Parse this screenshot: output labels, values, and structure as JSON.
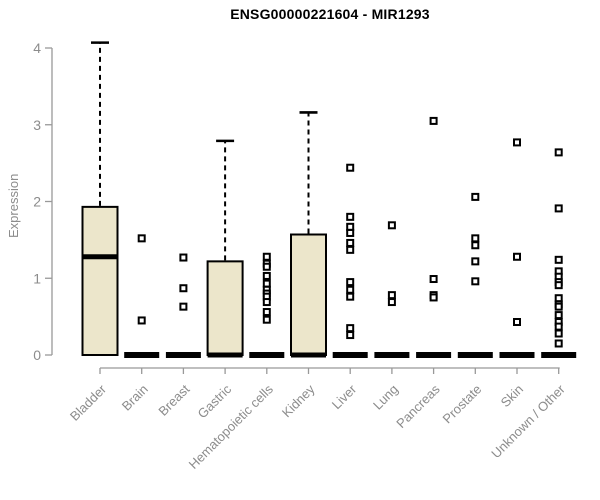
{
  "title": "ENSG00000221604 - MIR1293",
  "chart_data": {
    "type": "boxplot",
    "title": "ENSG00000221604 - MIR1293",
    "xlabel": "",
    "ylabel": "Expression",
    "ylim": [
      0,
      4
    ],
    "yticks": [
      0,
      1,
      2,
      3,
      4
    ],
    "grid": false,
    "legend": "none",
    "categories": [
      "Bladder",
      "Brain",
      "Breast",
      "Gastric",
      "Hematopoietic cells",
      "Kidney",
      "Liver",
      "Lung",
      "Pancreas",
      "Prostate",
      "Skin",
      "Unknown / Other"
    ],
    "series": [
      {
        "category": "Bladder",
        "q1": 0,
        "median": 1.28,
        "q3": 1.93,
        "whisker_low": 0,
        "whisker_high": 4.07,
        "outliers": []
      },
      {
        "category": "Brain",
        "q1": 0,
        "median": 0,
        "q3": 0,
        "whisker_low": 0,
        "whisker_high": 0,
        "outliers": [
          1.52,
          0.45
        ]
      },
      {
        "category": "Breast",
        "q1": 0,
        "median": 0,
        "q3": 0,
        "whisker_low": 0,
        "whisker_high": 0,
        "outliers": [
          1.27,
          0.87,
          0.63
        ]
      },
      {
        "category": "Gastric",
        "q1": 0,
        "median": 0,
        "q3": 1.22,
        "whisker_low": 0,
        "whisker_high": 2.79,
        "outliers": []
      },
      {
        "category": "Hematopoietic cells",
        "q1": 0,
        "median": 0,
        "q3": 0,
        "whisker_low": 0,
        "whisker_high": 0,
        "outliers": [
          1.28,
          1.19,
          1.15,
          1.03,
          0.93,
          0.85,
          0.8,
          0.76,
          0.69,
          0.56,
          0.46
        ]
      },
      {
        "category": "Kidney",
        "q1": 0,
        "median": 0,
        "q3": 1.57,
        "whisker_low": 0,
        "whisker_high": 3.16,
        "outliers": []
      },
      {
        "category": "Liver",
        "q1": 0,
        "median": 0,
        "q3": 0,
        "whisker_low": 0,
        "whisker_high": 0,
        "outliers": [
          2.44,
          1.8,
          1.67,
          1.59,
          1.46,
          1.37,
          0.95,
          0.85,
          0.76,
          0.35,
          0.26
        ]
      },
      {
        "category": "Lung",
        "q1": 0,
        "median": 0,
        "q3": 0,
        "whisker_low": 0,
        "whisker_high": 0,
        "outliers": [
          1.69,
          0.78,
          0.69
        ]
      },
      {
        "category": "Pancreas",
        "q1": 0,
        "median": 0,
        "q3": 0,
        "whisker_low": 0,
        "whisker_high": 0,
        "outliers": [
          3.05,
          0.99,
          0.78,
          0.75
        ]
      },
      {
        "category": "Prostate",
        "q1": 0,
        "median": 0,
        "q3": 0,
        "whisker_low": 0,
        "whisker_high": 0,
        "outliers": [
          2.06,
          1.52,
          1.43,
          1.22,
          0.96
        ]
      },
      {
        "category": "Skin",
        "q1": 0,
        "median": 0,
        "q3": 0,
        "whisker_low": 0,
        "whisker_high": 0,
        "outliers": [
          2.77,
          1.28,
          0.43
        ]
      },
      {
        "category": "Unknown / Other",
        "q1": 0,
        "median": 0,
        "q3": 0,
        "whisker_low": 0,
        "whisker_high": 0,
        "outliers": [
          2.64,
          1.91,
          1.24,
          1.09,
          1.02,
          0.95,
          0.91,
          0.74,
          0.66,
          0.63,
          0.52,
          0.43,
          0.37,
          0.28,
          0.15
        ]
      }
    ],
    "colors": {
      "box_fill": "#ece6cb",
      "box_border": "#000000",
      "median": "#000000",
      "whisker": "#000000",
      "outlier_stroke": "#000000",
      "outlier_fill": "#ffffff",
      "axis": "#999999",
      "tick_label": "#8c8c8c",
      "title": "#000000",
      "background": "#ffffff"
    }
  }
}
